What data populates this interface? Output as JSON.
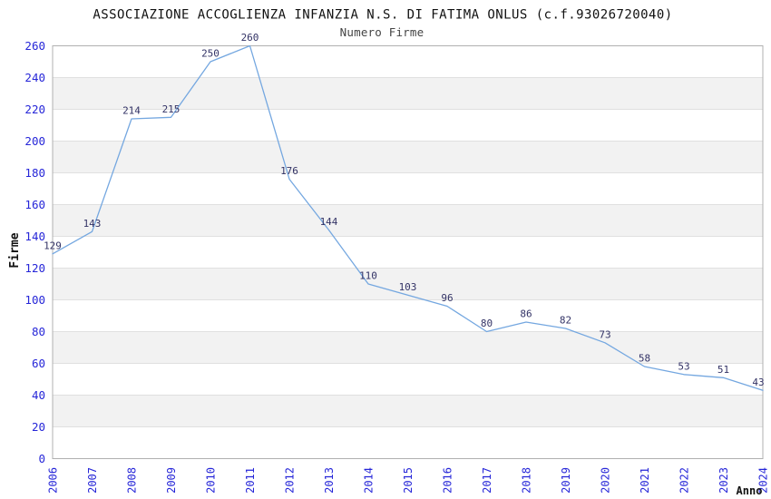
{
  "header": {
    "title": "ASSOCIAZIONE ACCOGLIENZA INFANZIA N.S. DI FATIMA ONLUS (c.f.93026720040)",
    "subtitle": "Numero Firme"
  },
  "chart_data": {
    "type": "line",
    "title": "ASSOCIAZIONE ACCOGLIENZA INFANZIA N.S. DI FATIMA ONLUS (c.f.93026720040)",
    "subtitle": "Numero Firme",
    "xlabel": "Anno",
    "ylabel": "Firme",
    "x": [
      2006,
      2007,
      2008,
      2009,
      2010,
      2011,
      2012,
      2013,
      2014,
      2015,
      2016,
      2017,
      2018,
      2019,
      2020,
      2021,
      2022,
      2023,
      2024
    ],
    "series": [
      {
        "name": "Numero Firme",
        "values": [
          129,
          143,
          214,
          215,
          250,
          260,
          176,
          144,
          110,
          103,
          96,
          80,
          86,
          82,
          73,
          58,
          53,
          51,
          43
        ]
      }
    ],
    "ylim": [
      0,
      260
    ],
    "ytick_step": 20,
    "grid": true,
    "legend": "none",
    "data_labels": true,
    "colors": {
      "line": "#74a7e0",
      "tick_label": "#2626d8",
      "data_label": "#333366",
      "gridline": "#e0e0e0",
      "band_alt": "#f2f2f2",
      "band_main": "#ffffff",
      "plot_border": "#b0b0b0"
    }
  }
}
